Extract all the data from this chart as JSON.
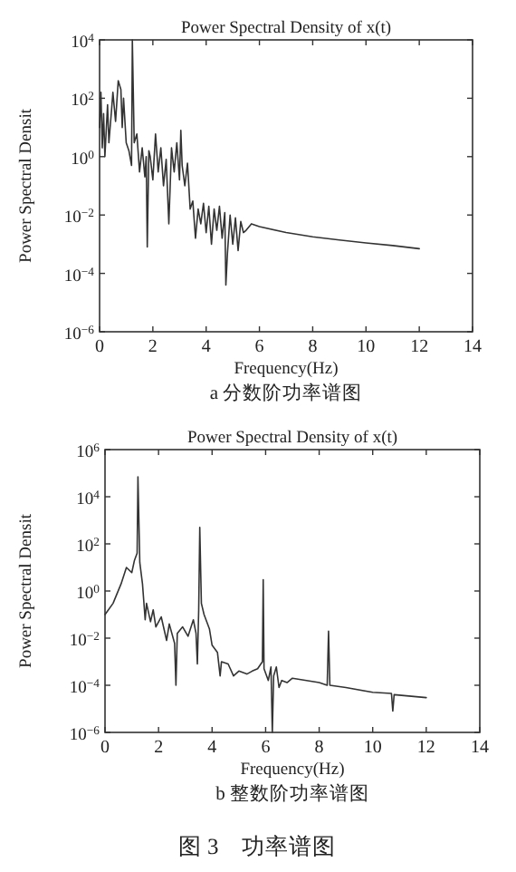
{
  "chart_data": [
    {
      "type": "line",
      "title": "Power Spectral Density of x(t)",
      "xlabel": "Frequency(Hz)",
      "ylabel": "Power Spectral Densit",
      "annotations": [
        "a 分数阶功率谱图"
      ],
      "log": "y",
      "xlim": [
        0,
        14
      ],
      "xticks": [
        0,
        2,
        4,
        6,
        8,
        10,
        12,
        14
      ],
      "ylim": [
        1e-06,
        10000.0
      ],
      "yticks": [
        {
          "value": 1e-06,
          "label": "10$^{−6}$"
        },
        {
          "value": 0.0001,
          "label": "10$^{−4}$"
        },
        {
          "value": 0.01,
          "label": "10$^{−2}$"
        },
        {
          "value": 1,
          "label": "10$^{0}$"
        },
        {
          "value": 100,
          "label": "10$^{2}$"
        },
        {
          "value": 10000,
          "label": "10$^{4}$"
        }
      ],
      "series": [
        {
          "color": "#333333",
          "x": [
            0,
            0.05,
            0.1,
            0.15,
            0.2,
            0.3,
            0.35,
            0.45,
            0.5,
            0.6,
            0.7,
            0.8,
            0.85,
            0.9,
            1.0,
            1.1,
            1.2,
            1.23,
            1.3,
            1.4,
            1.5,
            1.6,
            1.7,
            1.75,
            1.79,
            1.85,
            1.9,
            2.0,
            2.1,
            2.2,
            2.3,
            2.4,
            2.5,
            2.6,
            2.7,
            2.8,
            2.9,
            3.0,
            3.05,
            3.1,
            3.2,
            3.3,
            3.4,
            3.5,
            3.6,
            3.7,
            3.8,
            3.9,
            4.0,
            4.1,
            4.2,
            4.3,
            4.4,
            4.5,
            4.6,
            4.7,
            4.74,
            4.8,
            4.9,
            5.0,
            5.1,
            5.2,
            5.3,
            5.4,
            5.5,
            5.7,
            6,
            7,
            8,
            9,
            10,
            11,
            12
          ],
          "values": [
            10,
            160,
            2,
            30,
            1,
            60,
            3,
            40,
            160,
            16,
            400,
            200,
            10,
            100,
            3,
            1.6,
            0.5,
            10000,
            3,
            6,
            0.3,
            2,
            0.2,
            1,
            0.0008,
            1.6,
            1,
            0.16,
            6,
            0.3,
            2,
            0.1,
            0.8,
            0.005,
            2,
            0.3,
            3,
            0.16,
            8,
            0.5,
            0.1,
            0.6,
            0.016,
            0.03,
            0.0016,
            0.016,
            0.005,
            0.025,
            0.0025,
            0.02,
            0.001,
            0.016,
            0.003,
            0.02,
            0.0016,
            0.012,
            4e-05,
            0.0005,
            0.01,
            0.001,
            0.008,
            0.0006,
            0.006,
            0.0025,
            0.003,
            0.005,
            0.004,
            0.0025,
            0.0018,
            0.0014,
            0.0011,
            0.0009,
            0.0007
          ]
        }
      ]
    },
    {
      "type": "line",
      "title": "Power Spectral Density of x(t)",
      "xlabel": "Frequency(Hz)",
      "ylabel": "Power Spectral Densit",
      "annotations": [
        "b 整数阶功率谱图",
        "图 3　功率谱图"
      ],
      "log": "y",
      "xlim": [
        0,
        14
      ],
      "xticks": [
        0,
        2,
        4,
        6,
        8,
        10,
        12,
        14
      ],
      "ylim": [
        1e-06,
        1000000.0
      ],
      "yticks": [
        {
          "value": 1e-06,
          "label": "10$^{−6}$"
        },
        {
          "value": 0.0001,
          "label": "10$^{−4}$"
        },
        {
          "value": 0.01,
          "label": "10$^{−2}$"
        },
        {
          "value": 1,
          "label": "10$^{0}$"
        },
        {
          "value": 100,
          "label": "10$^{2}$"
        },
        {
          "value": 10000,
          "label": "10$^{4}$"
        },
        {
          "value": 1000000,
          "label": "10$^{6}$"
        }
      ],
      "series": [
        {
          "color": "#333333",
          "x": [
            0,
            0.3,
            0.6,
            0.8,
            1.0,
            1.1,
            1.2,
            1.23,
            1.3,
            1.4,
            1.5,
            1.55,
            1.7,
            1.8,
            1.9,
            2.1,
            2.3,
            2.4,
            2.6,
            2.65,
            2.7,
            2.9,
            3.1,
            3.3,
            3.4,
            3.45,
            3.5,
            3.54,
            3.6,
            3.7,
            3.9,
            4.0,
            4.2,
            4.3,
            4.35,
            4.6,
            4.8,
            5.0,
            5.3,
            5.5,
            5.7,
            5.88,
            5.91,
            5.94,
            6.1,
            6.2,
            6.25,
            6.3,
            6.4,
            6.5,
            6.6,
            6.8,
            7,
            8,
            8.3,
            8.35,
            8.4,
            9,
            10,
            10.7,
            10.75,
            10.8,
            12
          ],
          "values": [
            0.1,
            0.3,
            2,
            10,
            6,
            20,
            40,
            70000,
            16,
            2,
            0.06,
            0.3,
            0.05,
            0.16,
            0.03,
            0.08,
            0.008,
            0.04,
            0.006,
            0.0001,
            0.016,
            0.03,
            0.012,
            0.06,
            0.016,
            0.0008,
            0.16,
            500,
            0.3,
            0.1,
            0.025,
            0.005,
            0.0025,
            0.00025,
            0.001,
            0.0008,
            0.00025,
            0.0004,
            0.0003,
            0.0004,
            0.0005,
            0.001,
            3,
            0.0005,
            0.00016,
            0.0006,
            1e-06,
            0.00025,
            0.0006,
            8e-05,
            0.00016,
            0.00013,
            0.0002,
            0.00013,
            0.0001,
            0.02,
            0.0001,
            8e-05,
            5e-05,
            4.5e-05,
            8e-06,
            4e-05,
            3e-05
          ]
        }
      ]
    }
  ]
}
